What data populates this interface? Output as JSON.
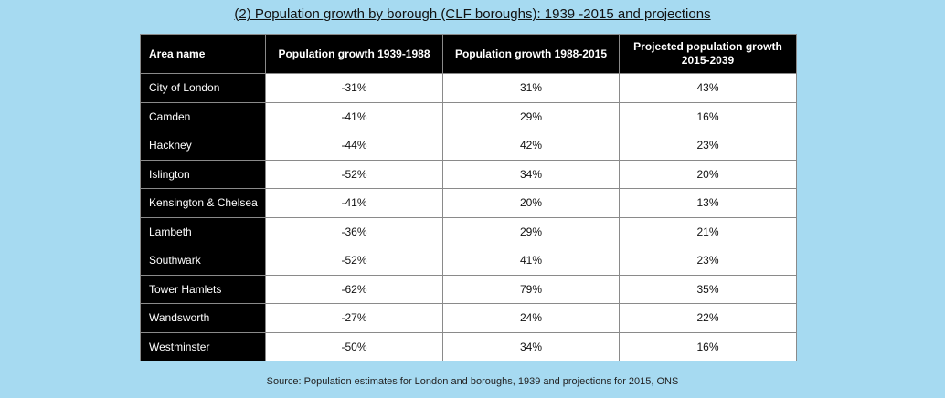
{
  "title": "(2) Population growth by borough (CLF boroughs): 1939 -2015 and projections",
  "table": {
    "headers": [
      "Area name",
      "Population growth 1939-1988",
      "Population growth 1988-2015",
      "Projected population growth 2015-2039"
    ],
    "rows": [
      {
        "area": "City of London",
        "g1939_1988": "-31%",
        "g1988_2015": "31%",
        "proj2015_2039": "43%"
      },
      {
        "area": "Camden",
        "g1939_1988": "-41%",
        "g1988_2015": "29%",
        "proj2015_2039": "16%"
      },
      {
        "area": "Hackney",
        "g1939_1988": "-44%",
        "g1988_2015": "42%",
        "proj2015_2039": "23%"
      },
      {
        "area": "Islington",
        "g1939_1988": "-52%",
        "g1988_2015": "34%",
        "proj2015_2039": "20%"
      },
      {
        "area": "Kensington & Chelsea",
        "g1939_1988": "-41%",
        "g1988_2015": "20%",
        "proj2015_2039": "13%"
      },
      {
        "area": "Lambeth",
        "g1939_1988": "-36%",
        "g1988_2015": "29%",
        "proj2015_2039": "21%"
      },
      {
        "area": "Southwark",
        "g1939_1988": "-52%",
        "g1988_2015": "41%",
        "proj2015_2039": "23%"
      },
      {
        "area": "Tower Hamlets",
        "g1939_1988": "-62%",
        "g1988_2015": "79%",
        "proj2015_2039": "35%"
      },
      {
        "area": "Wandsworth",
        "g1939_1988": "-27%",
        "g1988_2015": "24%",
        "proj2015_2039": "22%"
      },
      {
        "area": "Westminster",
        "g1939_1988": "-50%",
        "g1988_2015": "34%",
        "proj2015_2039": "16%"
      }
    ]
  },
  "source": "Source: Population estimates for London and boroughs, 1939 and projections for 2015, ONS",
  "colors": {
    "background": "#a6daf1",
    "header": "#000000",
    "cell": "#ffffff"
  }
}
